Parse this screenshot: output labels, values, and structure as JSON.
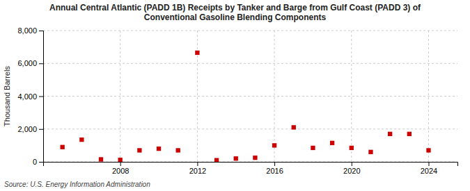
{
  "chart_data": {
    "type": "scatter",
    "title": "Annual Central Atlantic (PADD 1B) Receipts by Tanker and Barge from Gulf Coast (PADD 3) of\nConventional Gasoline Blending Components",
    "ylabel": "Thousand Barrels",
    "source": "Source: U.S. Energy Information Administration",
    "x": [
      2005,
      2006,
      2007,
      2008,
      2009,
      2010,
      2011,
      2012,
      2013,
      2014,
      2015,
      2016,
      2017,
      2018,
      2019,
      2020,
      2021,
      2022,
      2023,
      2024
    ],
    "values": [
      900,
      1350,
      150,
      120,
      700,
      800,
      700,
      6650,
      100,
      200,
      250,
      1000,
      2100,
      850,
      1150,
      850,
      600,
      1700,
      1700,
      700
    ],
    "color": "#cc0000",
    "marker": "square",
    "xlim": [
      2004,
      2025.5
    ],
    "ylim": [
      0,
      8000
    ],
    "xticks": [
      2008,
      2012,
      2016,
      2020,
      2024
    ],
    "yticks": [
      0,
      {
        "value": 2000,
        "label": "2,000"
      },
      {
        "value": 4000,
        "label": "4,000"
      },
      {
        "value": 6000,
        "label": "6,000"
      },
      {
        "value": 8000,
        "label": "8,000"
      }
    ],
    "grid": true
  }
}
